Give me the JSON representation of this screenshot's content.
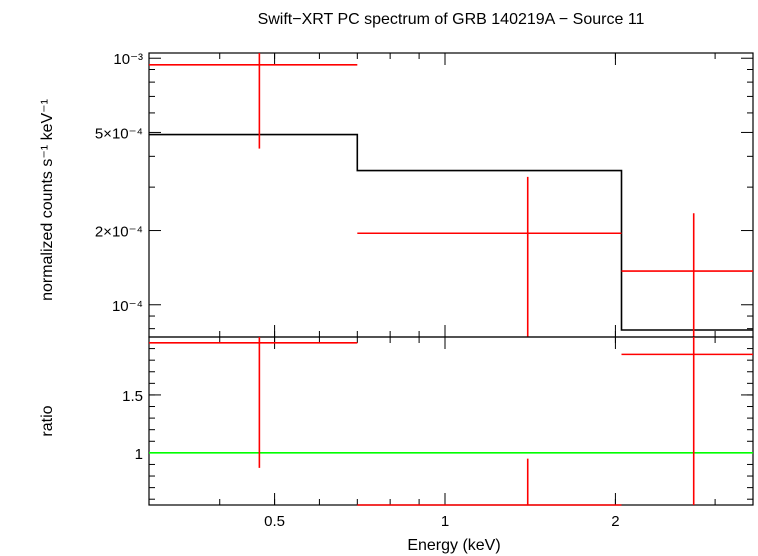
{
  "chart_data": {
    "type": "scatter",
    "title": "Swift−XRT PC spectrum of GRB 140219A − Source 11",
    "xlabel": "Energy (keV)",
    "xscale": "log",
    "xlim": [
      0.3,
      3.5
    ],
    "xticks": [
      {
        "value": 0.5,
        "label": "0.5"
      },
      {
        "value": 1,
        "label": "1"
      },
      {
        "value": 2,
        "label": "2"
      }
    ],
    "colors": {
      "data": "#ff0000",
      "model": "#000000",
      "ratio_line": "#00ff00",
      "axes": "#000000"
    },
    "panels": [
      {
        "name": "spectrum",
        "ylabel": "normalized counts s⁻¹ keV⁻¹",
        "yscale": "log",
        "ylim": [
          7.4e-05,
          0.00105
        ],
        "yticks": [
          {
            "value": 0.001,
            "label": "10⁻³"
          },
          {
            "value": 0.0005,
            "label": "5×10⁻⁴"
          },
          {
            "value": 0.0002,
            "label": "2×10⁻⁴"
          },
          {
            "value": 0.0001,
            "label": "10⁻⁴"
          }
        ],
        "data": [
          {
            "x": 0.47,
            "xlo": 0.3,
            "xhi": 0.7,
            "y": 0.00094,
            "ylo": 0.00043,
            "yhi": 0.00105
          },
          {
            "x": 1.4,
            "xlo": 0.7,
            "xhi": 2.05,
            "y": 0.000195,
            "ylo": 7.4e-05,
            "yhi": 0.00033
          },
          {
            "x": 2.75,
            "xlo": 2.05,
            "xhi": 3.5,
            "y": 0.000137,
            "ylo": 7.4e-05,
            "yhi": 0.000235
          }
        ],
        "model": [
          {
            "xlo": 0.3,
            "xhi": 0.7,
            "y": 0.00049
          },
          {
            "xlo": 0.7,
            "xhi": 2.05,
            "y": 0.00035
          },
          {
            "xlo": 2.05,
            "xhi": 3.5,
            "y": 7.9e-05
          }
        ]
      },
      {
        "name": "ratio",
        "ylabel": "ratio",
        "yscale": "linear",
        "ylim": [
          0.55,
          2.0
        ],
        "yticks": [
          {
            "value": 1,
            "label": "1"
          },
          {
            "value": 1.5,
            "label": "1.5"
          }
        ],
        "reference": 1,
        "data": [
          {
            "x": 0.47,
            "xlo": 0.3,
            "xhi": 0.7,
            "y": 1.95,
            "ylo": 0.87,
            "yhi": 2.0
          },
          {
            "x": 1.4,
            "xlo": 0.7,
            "xhi": 2.05,
            "y": 0.55,
            "ylo": 0.55,
            "yhi": 0.95
          },
          {
            "x": 2.75,
            "xlo": 2.05,
            "xhi": 3.5,
            "y": 1.85,
            "ylo": 0.55,
            "yhi": 2.0
          }
        ]
      }
    ]
  }
}
